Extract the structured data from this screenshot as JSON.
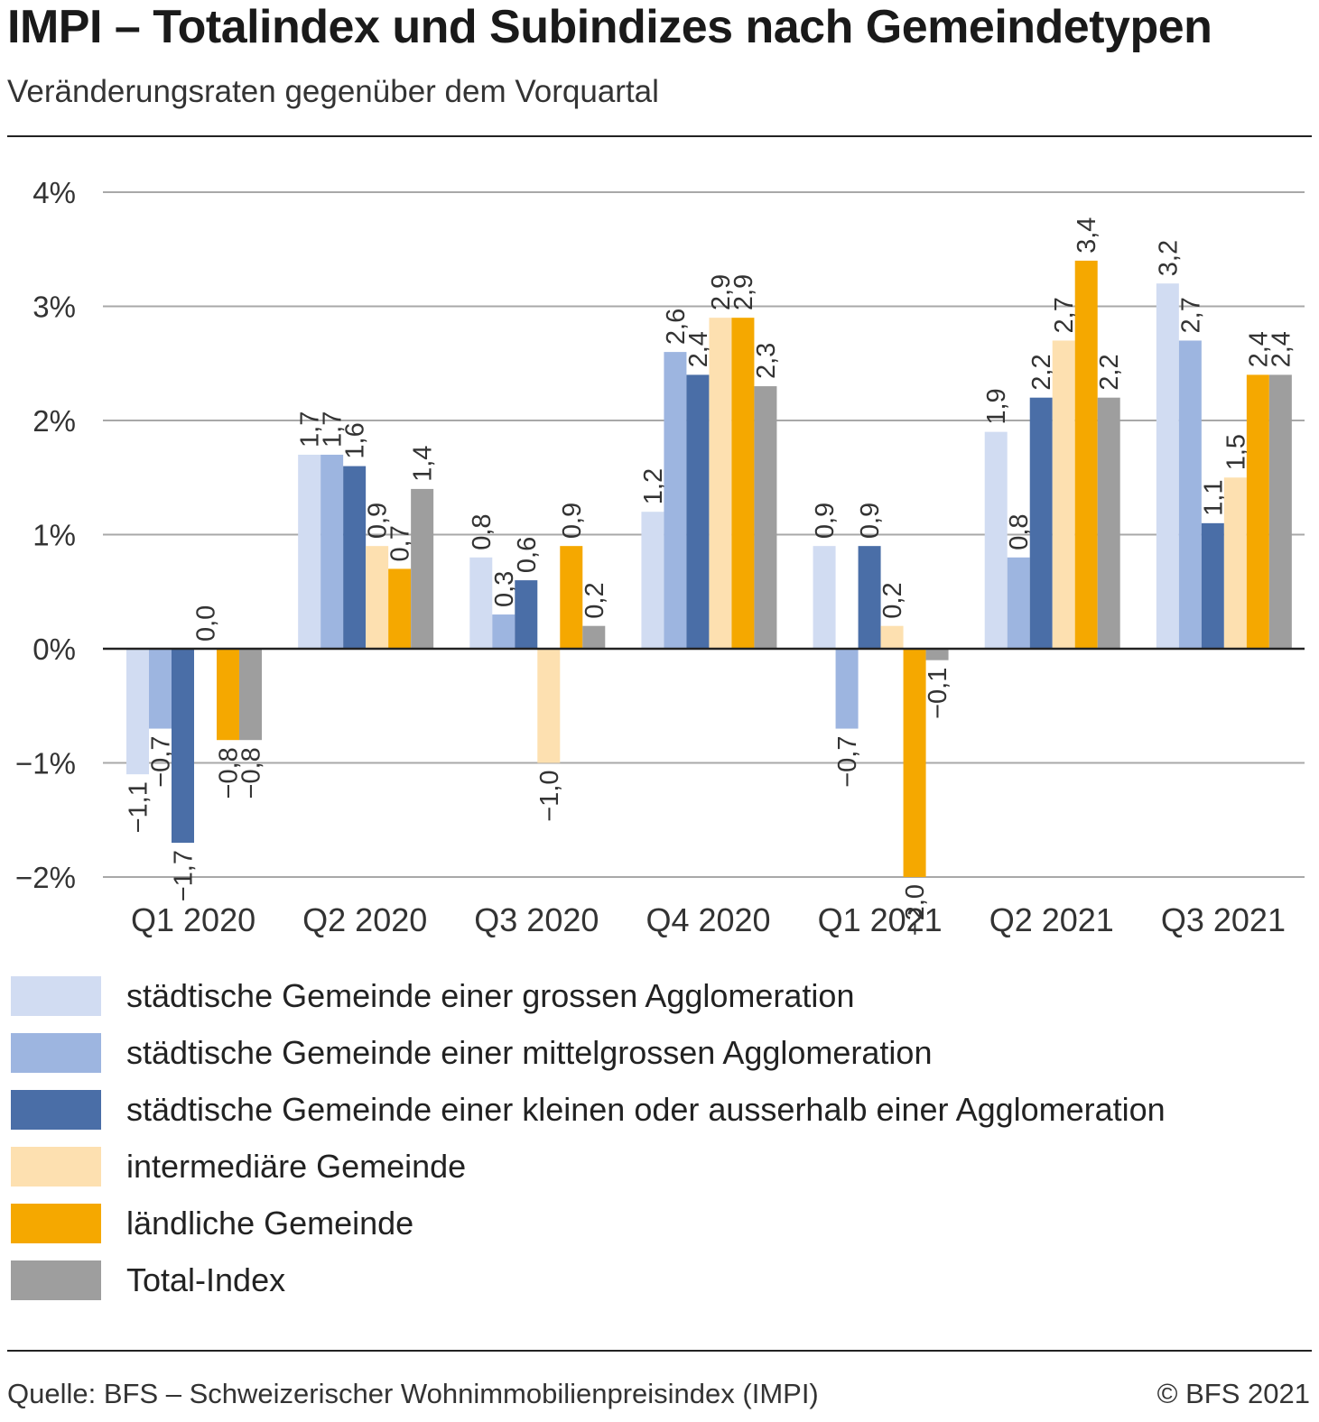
{
  "header": {
    "title": "IMPI – Totalindex und Subindizes nach Gemeindetypen",
    "subtitle": "Veränderungsraten gegenüber dem Vorquartal"
  },
  "footer": {
    "source": "Quelle: BFS – Schweizerischer Wohnimmobilienpreisindex (IMPI)",
    "copyright": "© BFS 2021"
  },
  "chart_data": {
    "type": "bar",
    "title": "IMPI – Totalindex und Subindizes nach Gemeindetypen",
    "subtitle": "Veränderungsraten gegenüber dem Vorquartal",
    "categories": [
      "Q1 2020",
      "Q2 2020",
      "Q3 2020",
      "Q4 2020",
      "Q1 2021",
      "Q2 2021",
      "Q3 2021"
    ],
    "ylim": [
      -2,
      4
    ],
    "yticks": [
      4,
      3,
      2,
      1,
      0,
      -1,
      -2
    ],
    "ytick_labels": [
      "4%",
      "3%",
      "2%",
      "1%",
      "0%",
      "−1%",
      "−2%"
    ],
    "grid": true,
    "legend_position": "bottom",
    "series": [
      {
        "name": "städtische Gemeinde einer grossen Agglomeration",
        "color": "#d1dcf2",
        "values": [
          -1.1,
          1.7,
          0.8,
          1.2,
          0.9,
          1.9,
          3.2
        ],
        "labels": [
          "−1,1",
          "1,7",
          "0,8",
          "1,2",
          "0,9",
          "1,9",
          "3,2"
        ]
      },
      {
        "name": "städtische Gemeinde einer mittelgrossen Agglomeration",
        "color": "#9db5e0",
        "values": [
          -0.7,
          1.7,
          0.3,
          2.6,
          -0.7,
          0.8,
          2.7
        ],
        "labels": [
          "−0,7",
          "1,7",
          "0,3",
          "2,6",
          "−0,7",
          "0,8",
          "2,7"
        ]
      },
      {
        "name": "städtische Gemeinde einer kleinen oder ausserhalb einer Agglomeration",
        "color": "#4a6ea7",
        "values": [
          -1.7,
          1.6,
          0.6,
          2.4,
          0.9,
          2.2,
          1.1
        ],
        "labels": [
          "−1,7",
          "1,6",
          "0,6",
          "2,4",
          "0,9",
          "2,2",
          "1,1"
        ]
      },
      {
        "name": "intermediäre Gemeinde",
        "color": "#fde0b0",
        "values": [
          0.0,
          0.9,
          -1.0,
          2.9,
          0.2,
          2.7,
          1.5
        ],
        "labels": [
          "0,0",
          "0,9",
          "−1,0",
          "2,9",
          "0,2",
          "2,7",
          "1,5"
        ]
      },
      {
        "name": "ländliche Gemeinde",
        "color": "#f5a800",
        "values": [
          -0.8,
          0.7,
          0.9,
          2.9,
          -2.0,
          3.4,
          2.4
        ],
        "labels": [
          "−0,8",
          "0,7",
          "0,9",
          "2,9",
          "−2,0",
          "3,4",
          "2,4"
        ]
      },
      {
        "name": "Total-Index",
        "color": "#9e9e9e",
        "values": [
          -0.8,
          1.4,
          0.2,
          2.3,
          -0.1,
          2.2,
          2.4
        ],
        "labels": [
          "−0,8",
          "1,4",
          "0,2",
          "2,3",
          "−0,1",
          "2,2",
          "2,4"
        ]
      }
    ]
  }
}
